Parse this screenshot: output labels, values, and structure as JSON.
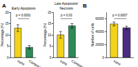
{
  "chart_data": [
    {
      "type": "bar",
      "panel": "A",
      "title": "Early Apoptosis",
      "y_label": "Percentage (%)",
      "categories": [
        "none",
        "Compound"
      ],
      "values": [
        13,
        4.5
      ],
      "errors": [
        1.5,
        0.8
      ],
      "colors": [
        "#f2d21b",
        "#2e8b57"
      ],
      "ylim": [
        0,
        20
      ],
      "yticks": [
        0,
        5,
        10,
        15,
        20
      ],
      "annotations": [
        "p = 0.0001"
      ]
    },
    {
      "type": "bar",
      "title": "Late Apoptosis/ Necrosis",
      "y_label": "Percentage (%)",
      "categories": [
        "none",
        "Compound"
      ],
      "values": [
        10,
        14
      ],
      "errors": [
        1.5,
        1.0
      ],
      "colors": [
        "#f2d21b",
        "#2e8b57"
      ],
      "ylim": [
        0,
        20
      ],
      "yticks": [
        0,
        5,
        10,
        15,
        20
      ],
      "annotations": [
        "p = 0.03"
      ]
    },
    {
      "type": "bar",
      "panel": "B",
      "y_label": "Number of cells",
      "categories": [
        "none",
        "Compound"
      ],
      "values": [
        52000,
        46000
      ],
      "errors": [
        3000,
        2500
      ],
      "colors": [
        "#f2d21b",
        "#4b2c83"
      ],
      "ylim": [
        0,
        70000
      ],
      "yticks": [
        0,
        20000,
        40000,
        60000
      ],
      "annotations": [
        "p = 0.0007"
      ]
    }
  ]
}
